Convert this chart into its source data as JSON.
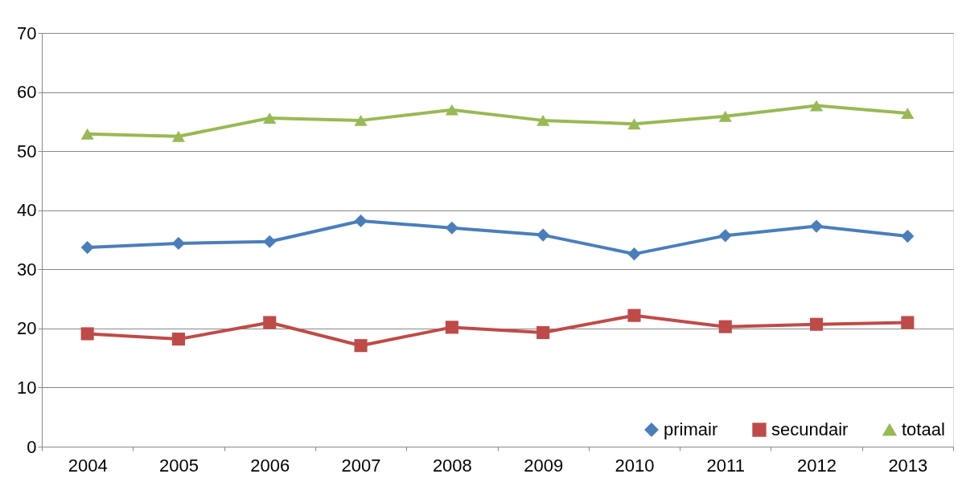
{
  "chart_data": {
    "type": "line",
    "categories": [
      "2004",
      "2005",
      "2006",
      "2007",
      "2008",
      "2009",
      "2010",
      "2011",
      "2012",
      "2013"
    ],
    "series": [
      {
        "name": "primair",
        "color": "#4a7ebb",
        "marker": "diamond",
        "values": [
          33.7,
          34.4,
          34.7,
          38.2,
          37.0,
          35.8,
          32.6,
          35.7,
          37.3,
          35.6
        ]
      },
      {
        "name": "secundair",
        "color": "#be4b48",
        "marker": "square",
        "values": [
          19.1,
          18.2,
          21.0,
          17.1,
          20.2,
          19.3,
          22.2,
          20.3,
          20.7,
          21.0
        ]
      },
      {
        "name": "totaal",
        "color": "#98b954",
        "marker": "triangle",
        "values": [
          52.9,
          52.5,
          55.6,
          55.2,
          57.0,
          55.2,
          54.6,
          55.9,
          57.7,
          56.4
        ]
      }
    ],
    "ylim": [
      0,
      70
    ],
    "yticks": [
      0,
      10,
      20,
      30,
      40,
      50,
      60,
      70
    ],
    "grid": "y",
    "legend": "bottom right",
    "line_style": "solid"
  }
}
